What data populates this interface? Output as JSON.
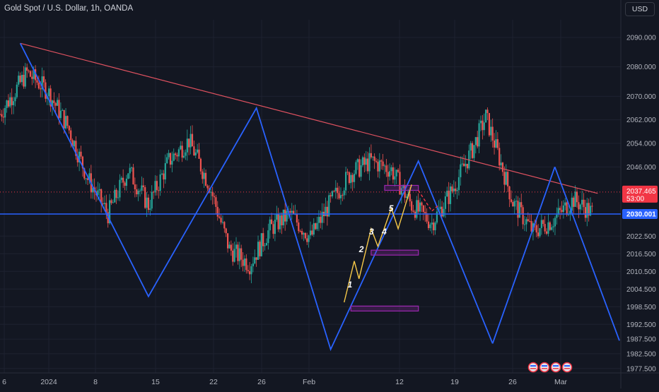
{
  "header": {
    "symbol_title": "Gold Spot / U.S. Dollar, 1h, OANDA",
    "currency": "USD"
  },
  "colors": {
    "background": "#131722",
    "grid": "#1e2230",
    "axis_text": "#b2b5be",
    "bull": "#26a69a",
    "bear": "#ef5350",
    "zigzag": "#2962ff",
    "trendline": "#e05260",
    "wave": "#f7c948",
    "wave_alt": "#66bb6a",
    "box": "#9c27b0",
    "price_tag": "#f23645",
    "level_tag": "#2962ff"
  },
  "chart_data": {
    "type": "candlestick",
    "title": "Gold Spot / U.S. Dollar, 1h, OANDA",
    "xlabel": "",
    "ylabel": "",
    "x_ticks": [
      "6",
      "2024",
      "8",
      "15",
      "22",
      "26",
      "Feb",
      "12",
      "19",
      "26",
      "Mar"
    ],
    "y_ticks": [
      "2090.000",
      "2080.000",
      "2070.000",
      "2062.000",
      "2054.000",
      "2046.000",
      "2030.000",
      "2022.500",
      "2016.500",
      "2010.500",
      "2004.500",
      "1998.500",
      "1992.500",
      "1987.500",
      "1982.500",
      "1977.500"
    ],
    "y_range": [
      1976,
      2096
    ],
    "price_path": [
      [
        0,
        2064
      ],
      [
        4,
        2078
      ],
      [
        7,
        2072
      ],
      [
        10,
        2060
      ],
      [
        13,
        2042
      ],
      [
        16,
        2030
      ],
      [
        19,
        2045
      ],
      [
        22,
        2033
      ],
      [
        25,
        2048
      ],
      [
        28,
        2055
      ],
      [
        31,
        2040
      ],
      [
        34,
        2018
      ],
      [
        37,
        2013
      ],
      [
        40,
        2025
      ],
      [
        43,
        2030
      ],
      [
        46,
        2022
      ],
      [
        49,
        2034
      ],
      [
        52,
        2044
      ],
      [
        55,
        2048
      ],
      [
        58,
        2045
      ],
      [
        61,
        2033
      ],
      [
        64,
        2027
      ],
      [
        67,
        2038
      ],
      [
        70,
        2052
      ],
      [
        72,
        2063
      ],
      [
        74,
        2049
      ],
      [
        76,
        2034
      ],
      [
        79,
        2024
      ],
      [
        82,
        2028
      ],
      [
        85,
        2035
      ],
      [
        88,
        2030
      ]
    ],
    "current_price": "2037.465",
    "countdown": "53:00",
    "level_label": "2030.001",
    "level_value": 2030.001,
    "current_value": 2037.465,
    "zigzag": [
      [
        3,
        2088
      ],
      [
        22,
        2002
      ],
      [
        38,
        2066
      ],
      [
        49,
        1984
      ],
      [
        62,
        2048
      ],
      [
        73,
        1986
      ]
    ],
    "trendline": [
      [
        3,
        2088
      ],
      [
        76,
        2043
      ]
    ],
    "wave_path": [
      [
        51,
        2000
      ],
      [
        52.5,
        2014
      ],
      [
        53.2,
        2008
      ],
      [
        55,
        2025
      ],
      [
        56,
        2019
      ],
      [
        58,
        2032
      ],
      [
        59,
        2025
      ],
      [
        61,
        2040
      ]
    ],
    "wave_labels": [
      {
        "text": "1",
        "x": 51.5,
        "y": 2005
      },
      {
        "text": "2",
        "x": 53.2,
        "y": 2017
      },
      {
        "text": "3",
        "x": 54.7,
        "y": 2023
      },
      {
        "text": "4",
        "x": 56.6,
        "y": 2023
      },
      {
        "text": "5",
        "x": 57.6,
        "y": 2031
      }
    ],
    "boxes": [
      [
        57,
        2039,
        62,
        2038
      ],
      [
        55,
        2017,
        62,
        2016
      ],
      [
        52,
        1998,
        62,
        1997
      ]
    ],
    "forecast_dashed": [
      [
        62,
        2038
      ],
      [
        64,
        2031
      ],
      [
        65,
        2033
      ]
    ],
    "events": 4
  }
}
